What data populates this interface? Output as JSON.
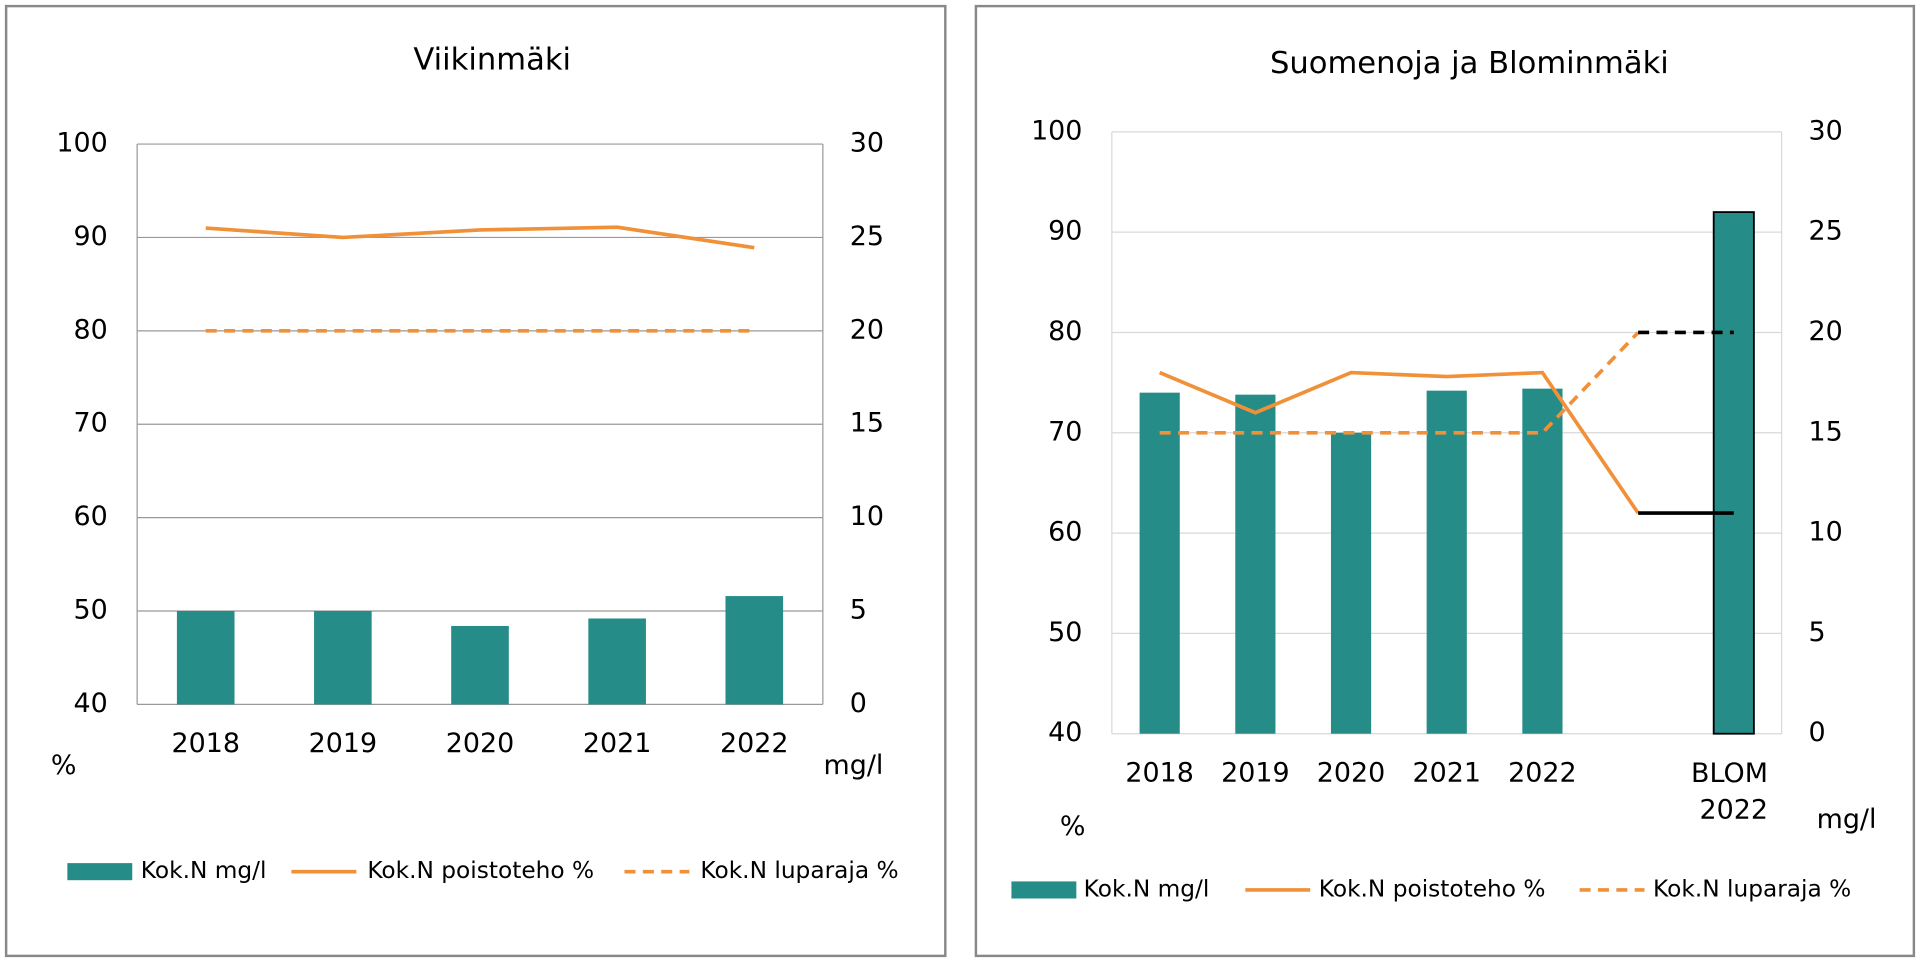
{
  "chart_data": [
    {
      "type": "combo",
      "title": "Viikinmäki",
      "categories": [
        "2018",
        "2019",
        "2020",
        "2021",
        "2022"
      ],
      "ylim": [
        40,
        100
      ],
      "yticks": [
        40,
        50,
        60,
        70,
        80,
        90,
        100
      ],
      "y2lim": [
        0,
        30
      ],
      "y2ticks": [
        0,
        5,
        10,
        15,
        20,
        25,
        30
      ],
      "ylabel": "%",
      "y2label": "mg/l",
      "grid": true,
      "legend": "bottom",
      "series": [
        {
          "name": "Kok.N mg/l",
          "type": "bar",
          "axis": "y2",
          "color": "#268c87",
          "values": [
            5.0,
            5.0,
            4.2,
            4.6,
            5.8
          ]
        },
        {
          "name": "Kok.N poistoteho %",
          "type": "line",
          "color": "#f0913a",
          "values": [
            91.0,
            90.0,
            90.8,
            91.1,
            88.9
          ]
        },
        {
          "name": "Kok.N luparaja %",
          "type": "line",
          "linestyle": "dashed",
          "color": "#f0913a",
          "values": [
            80,
            80,
            80,
            80,
            80
          ]
        }
      ]
    },
    {
      "type": "combo",
      "title": "Suomenoja ja Blominmäki",
      "categories": [
        "2018",
        "2019",
        "2020",
        "2021",
        "2022",
        null,
        "BLOM 2022"
      ],
      "ylim": [
        40,
        100
      ],
      "yticks": [
        40,
        50,
        60,
        70,
        80,
        90,
        100
      ],
      "y2lim": [
        0,
        30
      ],
      "y2ticks": [
        0,
        5,
        10,
        15,
        20,
        25,
        30
      ],
      "ylabel": "%",
      "y2label": "mg/l",
      "grid": true,
      "legend": "bottom",
      "series": [
        {
          "name": "Kok.N mg/l",
          "type": "bar",
          "axis": "y2",
          "color": "#268c87",
          "edgecolors": [
            null,
            null,
            null,
            null,
            null,
            null,
            "#000000"
          ],
          "values": [
            17.0,
            16.9,
            15.0,
            17.1,
            17.2,
            null,
            26.0
          ]
        },
        {
          "name": "Kok.N poistoteho %",
          "type": "line",
          "color": "#f0913a",
          "values": [
            76.0,
            72.0,
            76.0,
            75.6,
            76.0,
            62,
            null
          ]
        },
        {
          "name": "Kok.N luparaja %",
          "type": "line",
          "linestyle": "dashed",
          "color": "#f0913a",
          "values": [
            70,
            70,
            70,
            70,
            70,
            80,
            null
          ]
        },
        {
          "type": "line",
          "color": "#000000",
          "values": [
            null,
            null,
            null,
            null,
            null,
            62,
            62
          ]
        },
        {
          "type": "line",
          "linestyle": "dashed",
          "color": "#000000",
          "values": [
            null,
            null,
            null,
            null,
            null,
            80,
            80
          ]
        }
      ]
    }
  ]
}
